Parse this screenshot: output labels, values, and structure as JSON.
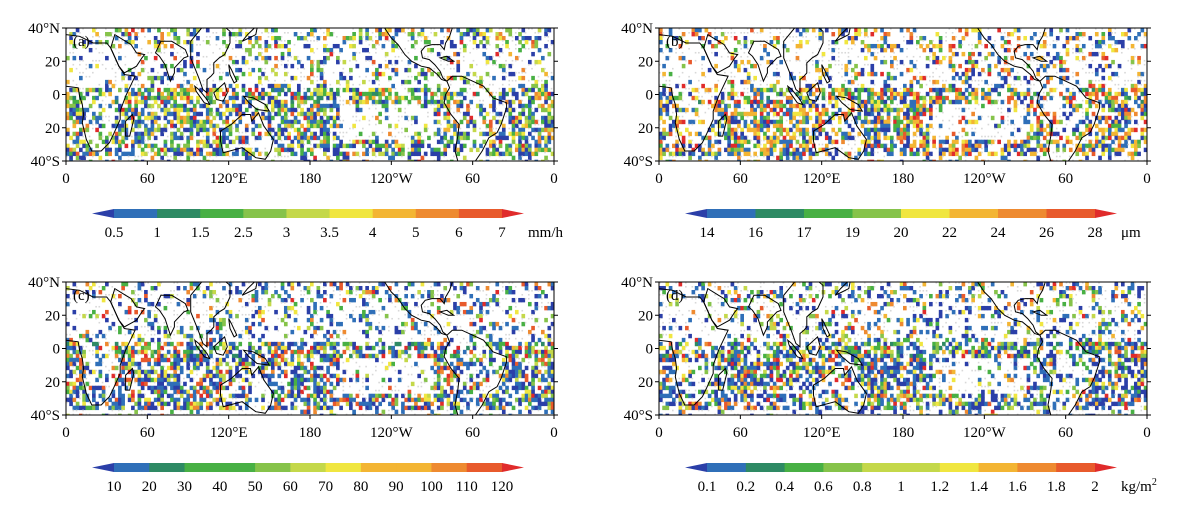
{
  "axes": {
    "y_ticks": [
      "40°N",
      "20",
      "0",
      "20",
      "40°S"
    ],
    "x_ticks": [
      "0",
      "60",
      "120°E",
      "180",
      "120°W",
      "60",
      "0"
    ]
  },
  "colors": {
    "palette": [
      "#2b3fa8",
      "#2f6fb8",
      "#2e8a64",
      "#48b044",
      "#86c34a",
      "#c4d84a",
      "#f0e640",
      "#f3b533",
      "#ee8a30",
      "#e85a2c",
      "#e02b2b"
    ]
  },
  "chart_data": [
    {
      "type": "heatmap",
      "panel_label": "(a)",
      "colorbar": {
        "ticks": [
          "0.5",
          "1",
          "1.5",
          "2.5",
          "3",
          "3.5",
          "4",
          "5",
          "6",
          "7"
        ],
        "unit": "mm/h",
        "unit_sup": ""
      },
      "ylim": [
        -40,
        40
      ],
      "xlim": [
        0,
        360
      ]
    },
    {
      "type": "heatmap",
      "panel_label": "(b)",
      "colorbar": {
        "ticks": [
          "14",
          "16",
          "17",
          "19",
          "20",
          "22",
          "24",
          "26",
          "28"
        ],
        "unit": "μm",
        "unit_sup": ""
      },
      "ylim": [
        -40,
        40
      ],
      "xlim": [
        0,
        360
      ]
    },
    {
      "type": "heatmap",
      "panel_label": "(c)",
      "colorbar": {
        "ticks": [
          "10",
          "20",
          "30",
          "40",
          "50",
          "60",
          "70",
          "80",
          "90",
          "100",
          "110",
          "120"
        ],
        "unit": "",
        "unit_sup": ""
      },
      "ylim": [
        -40,
        40
      ],
      "xlim": [
        0,
        360
      ]
    },
    {
      "type": "heatmap",
      "panel_label": "(d)",
      "colorbar": {
        "ticks": [
          "0.1",
          "0.2",
          "0.4",
          "0.6",
          "0.8",
          "1",
          "1.2",
          "1.4",
          "1.6",
          "1.8",
          "2"
        ],
        "unit": "kg/m",
        "unit_sup": "2"
      },
      "ylim": [
        -40,
        40
      ],
      "xlim": [
        0,
        360
      ]
    }
  ]
}
